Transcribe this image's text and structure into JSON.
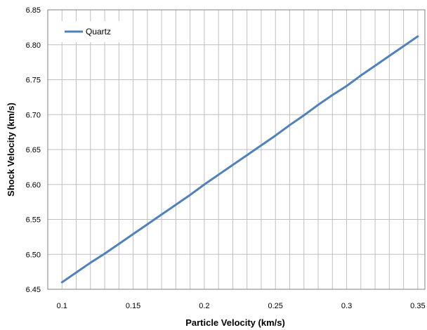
{
  "chart_data": {
    "type": "line",
    "title": "",
    "xlabel": "Particle Velocity (km/s)",
    "ylabel": "Shock Velocity (km/s)",
    "xlim": [
      0.09,
      0.355
    ],
    "ylim": [
      6.45,
      6.85
    ],
    "x_ticks": [
      "0.1",
      "0.15",
      "0.2",
      "0.25",
      "0.3",
      "0.35"
    ],
    "x_tick_values": [
      0.1,
      0.15,
      0.2,
      0.25,
      0.3,
      0.35
    ],
    "y_ticks": [
      "6.45",
      "6.50",
      "6.55",
      "6.60",
      "6.65",
      "6.70",
      "6.75",
      "6.80",
      "6.85"
    ],
    "y_tick_values": [
      6.45,
      6.5,
      6.55,
      6.6,
      6.65,
      6.7,
      6.75,
      6.8,
      6.85
    ],
    "x_grid": [
      0.09,
      0.1,
      0.11,
      0.12,
      0.13,
      0.14,
      0.15,
      0.16,
      0.17,
      0.18,
      0.19,
      0.2,
      0.21,
      0.22,
      0.23,
      0.24,
      0.25,
      0.26,
      0.27,
      0.28,
      0.29,
      0.3,
      0.31,
      0.32,
      0.33,
      0.34,
      0.35
    ],
    "grid": true,
    "legend_position": "top-left",
    "series": [
      {
        "name": "Quartz",
        "color": "#4f81bd",
        "x": [
          0.1,
          0.11,
          0.12,
          0.13,
          0.14,
          0.15,
          0.16,
          0.17,
          0.18,
          0.19,
          0.2,
          0.21,
          0.22,
          0.23,
          0.24,
          0.25,
          0.26,
          0.27,
          0.28,
          0.29,
          0.3,
          0.31,
          0.32,
          0.33,
          0.34,
          0.35
        ],
        "y": [
          6.46,
          6.474,
          6.488,
          6.501,
          6.515,
          6.529,
          6.543,
          6.557,
          6.571,
          6.585,
          6.6,
          6.614,
          6.628,
          6.642,
          6.656,
          6.67,
          6.685,
          6.699,
          6.714,
          6.728,
          6.741,
          6.756,
          6.77,
          6.784,
          6.798,
          6.812
        ]
      }
    ]
  }
}
